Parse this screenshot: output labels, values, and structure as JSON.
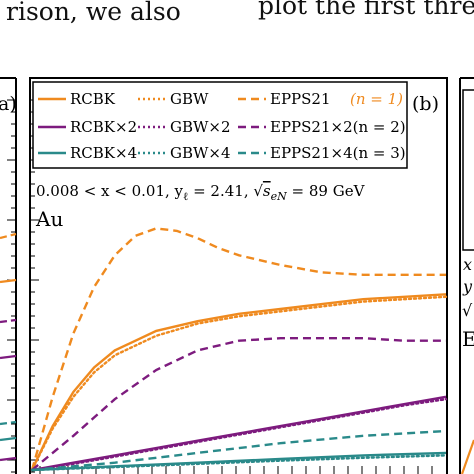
{
  "page_text": {
    "top_left": "rison,  we  also",
    "top_right": "plot the first three"
  },
  "panel_labels": {
    "left": "a)",
    "center": "(b)"
  },
  "legend": [
    {
      "label": "RCBK",
      "color": "#ef8a1f",
      "dash": "solid"
    },
    {
      "label": "GBW",
      "color": "#ef8a1f",
      "dash": "dotted"
    },
    {
      "label": "EPPS21",
      "color": "#ef8a1f",
      "dash": "dashed"
    },
    {
      "label": "(n = 1)",
      "color": "#ef8a1f",
      "dash": "none"
    },
    {
      "label": "RCBK×2",
      "color": "#7d1b7e",
      "dash": "solid"
    },
    {
      "label": "GBW×2",
      "color": "#7d1b7e",
      "dash": "dotted"
    },
    {
      "label": "EPPS21×2(n = 2)",
      "color": "#7d1b7e",
      "dash": "dashed"
    },
    {
      "label": "RCBK×4",
      "color": "#2a8a8a",
      "dash": "solid"
    },
    {
      "label": "GBW×4",
      "color": "#2a8a8a",
      "dash": "dotted"
    },
    {
      "label": "EPPS21×4(n = 3)",
      "color": "#2a8a8a",
      "dash": "dashed"
    }
  ],
  "annotation": "0.008 < x < 0.01, yℓ = 2.41, √s_eN = 89 GeV",
  "annotation_parts": {
    "range": "0.008 < x < 0.01, y",
    "ysub": "ℓ",
    "yval": " = 2.41, ",
    "sqrt": "√",
    "sqrtarg": "s",
    "sqrtsub": "eN",
    "tail": " = 89 GeV"
  },
  "nucleus": "Au",
  "right_panel_fragments": {
    "a": "x",
    "b": "y",
    "c": "√",
    "d": "E"
  },
  "colors": {
    "orange": "#ef8a1f",
    "purple": "#7d1b7e",
    "teal": "#2a8a8a"
  },
  "chart_data": {
    "type": "line",
    "title": "",
    "xlabel": "",
    "ylabel": "",
    "xlim": [
      0,
      1
    ],
    "ylim": [
      0,
      1
    ],
    "series": [
      {
        "name": "RCBK",
        "color": "#ef8a1f",
        "dash": "solid",
        "x": [
          0.0,
          0.05,
          0.1,
          0.15,
          0.2,
          0.3,
          0.4,
          0.5,
          0.6,
          0.7,
          0.8,
          0.9,
          1.0
        ],
        "y": [
          0.0,
          0.18,
          0.32,
          0.42,
          0.49,
          0.57,
          0.61,
          0.64,
          0.66,
          0.68,
          0.7,
          0.71,
          0.72
        ]
      },
      {
        "name": "GBW",
        "color": "#ef8a1f",
        "dash": "dotted",
        "x": [
          0.0,
          0.05,
          0.1,
          0.15,
          0.2,
          0.3,
          0.4,
          0.5,
          0.6,
          0.7,
          0.8,
          0.9,
          1.0
        ],
        "y": [
          0.0,
          0.17,
          0.3,
          0.4,
          0.47,
          0.55,
          0.6,
          0.63,
          0.65,
          0.67,
          0.69,
          0.7,
          0.71
        ]
      },
      {
        "name": "EPPS21",
        "color": "#ef8a1f",
        "dash": "dashed",
        "x": [
          0.0,
          0.05,
          0.1,
          0.15,
          0.2,
          0.25,
          0.3,
          0.35,
          0.4,
          0.45,
          0.5,
          0.6,
          0.7,
          0.8,
          0.9,
          1.0
        ],
        "y": [
          0.0,
          0.3,
          0.56,
          0.75,
          0.88,
          0.96,
          0.99,
          0.98,
          0.95,
          0.91,
          0.88,
          0.84,
          0.81,
          0.8,
          0.8,
          0.8
        ]
      },
      {
        "name": "RCBK×2",
        "color": "#7d1b7e",
        "dash": "solid",
        "x": [
          0.0,
          0.1,
          0.2,
          0.3,
          0.4,
          0.5,
          0.6,
          0.7,
          0.8,
          0.9,
          1.0
        ],
        "y": [
          0.0,
          0.03,
          0.06,
          0.09,
          0.12,
          0.15,
          0.18,
          0.21,
          0.24,
          0.27,
          0.3
        ]
      },
      {
        "name": "GBW×2",
        "color": "#7d1b7e",
        "dash": "dotted",
        "x": [
          0.0,
          0.1,
          0.2,
          0.3,
          0.4,
          0.5,
          0.6,
          0.7,
          0.8,
          0.9,
          1.0
        ],
        "y": [
          0.0,
          0.025,
          0.055,
          0.085,
          0.115,
          0.145,
          0.175,
          0.205,
          0.235,
          0.265,
          0.29
        ]
      },
      {
        "name": "EPPS21×2",
        "color": "#7d1b7e",
        "dash": "dashed",
        "x": [
          0.0,
          0.1,
          0.2,
          0.3,
          0.4,
          0.5,
          0.6,
          0.7,
          0.8,
          0.9,
          1.0
        ],
        "y": [
          0.0,
          0.14,
          0.29,
          0.41,
          0.49,
          0.53,
          0.54,
          0.54,
          0.54,
          0.53,
          0.53
        ]
      },
      {
        "name": "RCBK×4",
        "color": "#2a8a8a",
        "dash": "solid",
        "x": [
          0.0,
          0.2,
          0.4,
          0.6,
          0.8,
          1.0
        ],
        "y": [
          0.0,
          0.015,
          0.03,
          0.045,
          0.06,
          0.07
        ]
      },
      {
        "name": "GBW×4",
        "color": "#2a8a8a",
        "dash": "dotted",
        "x": [
          0.0,
          0.2,
          0.4,
          0.6,
          0.8,
          1.0
        ],
        "y": [
          0.0,
          0.012,
          0.025,
          0.038,
          0.05,
          0.06
        ]
      },
      {
        "name": "EPPS21×4",
        "color": "#2a8a8a",
        "dash": "dashed",
        "x": [
          0.0,
          0.2,
          0.4,
          0.6,
          0.8,
          1.0
        ],
        "y": [
          0.0,
          0.03,
          0.07,
          0.11,
          0.14,
          0.16
        ]
      }
    ]
  }
}
